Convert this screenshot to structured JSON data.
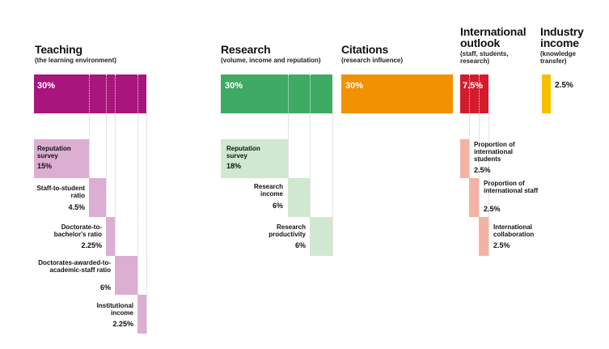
{
  "colors": {
    "teaching_main": "#a8157d",
    "teaching_sub": "#dcaed2",
    "research_main": "#3faa63",
    "research_sub": "#cfe8cf",
    "citations_main": "#f29200",
    "international_main": "#d41b2c",
    "international_sub": "#f3b2a4",
    "industry_main": "#f6c000"
  },
  "teaching": {
    "title": "Teaching",
    "subtitle": "(the learning environment)",
    "percent": "30%",
    "items": [
      {
        "label": "Reputation survey",
        "percent": "15%"
      },
      {
        "label": "Staff-to-student ratio",
        "percent": "4.5%"
      },
      {
        "label": "Doctorate-to-bachelor's ratio",
        "percent": "2.25%"
      },
      {
        "label": "Doctorates-awarded-to-academic-staff ratio",
        "percent": "6%"
      },
      {
        "label": "Institutional income",
        "percent": "2.25%"
      }
    ]
  },
  "research": {
    "title": "Research",
    "subtitle": "(volume, income and reputation)",
    "percent": "30%",
    "items": [
      {
        "label": "Reputation survey",
        "percent": "18%"
      },
      {
        "label": "Research income",
        "percent": "6%"
      },
      {
        "label": "Research productivity",
        "percent": "6%"
      }
    ]
  },
  "citations": {
    "title": "Citations",
    "subtitle": "(research influence)",
    "percent": "30%"
  },
  "international": {
    "title": "International outlook",
    "subtitle": "(staff, students, research)",
    "percent": "7.5%",
    "items": [
      {
        "label": "Proportion of international students",
        "percent": "2.5%"
      },
      {
        "label": "Proportion of international staff",
        "percent": "2.5%"
      },
      {
        "label": "International collaboration",
        "percent": "2.5%"
      }
    ]
  },
  "industry": {
    "title": "Industry income",
    "subtitle": "(knowledge transfer)",
    "percent": "2.5%"
  }
}
